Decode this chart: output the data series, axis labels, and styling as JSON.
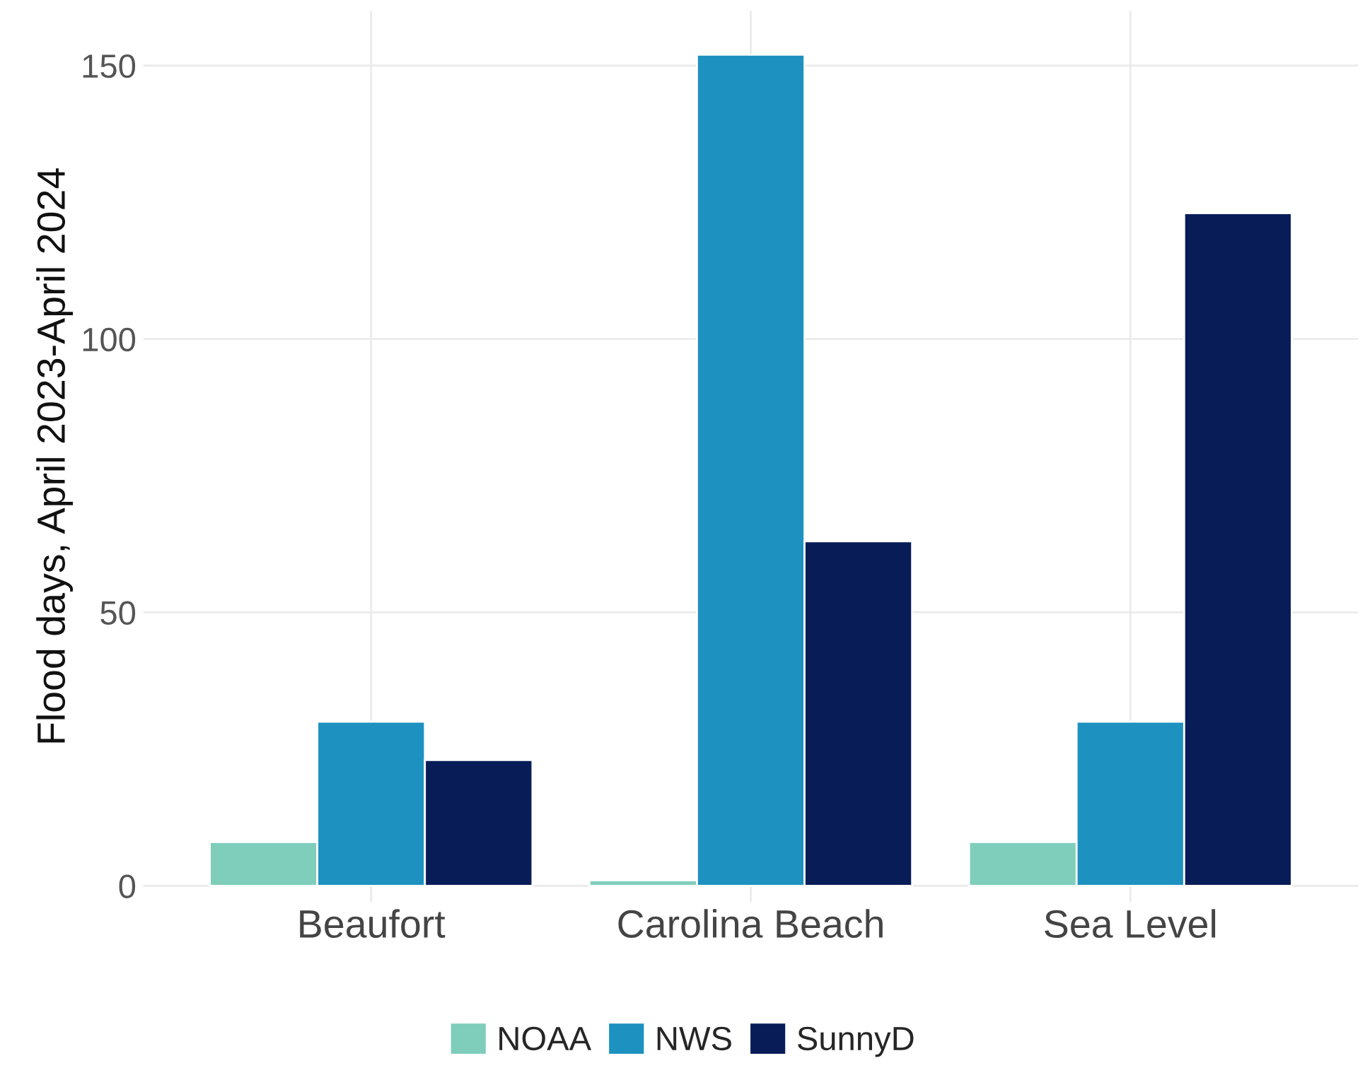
{
  "chart_data": {
    "type": "bar",
    "ylabel": "Flood days, April 2023-April 2024",
    "categories": [
      "Beaufort",
      "Carolina Beach",
      "Sea Level"
    ],
    "series": [
      {
        "name": "NOAA",
        "color": "#7fcdbb",
        "values": [
          8,
          1,
          8
        ]
      },
      {
        "name": "NWS",
        "color": "#1d91c0",
        "values": [
          30,
          152,
          30
        ]
      },
      {
        "name": "SunnyD",
        "color": "#081d58",
        "values": [
          23,
          63,
          123
        ]
      }
    ],
    "ylim": [
      -3,
      160
    ],
    "yticks": [
      0,
      50,
      100,
      150
    ],
    "grid": true,
    "legend": "bottom"
  }
}
